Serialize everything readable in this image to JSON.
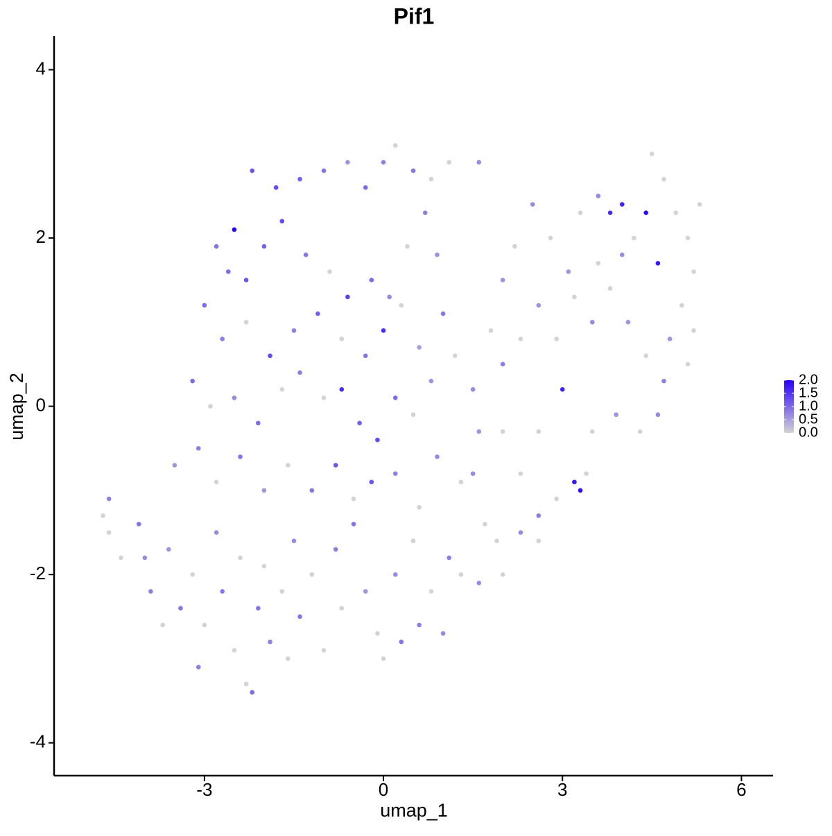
{
  "chart_data": {
    "type": "scatter",
    "title": "Pif1",
    "xlabel": "umap_1",
    "ylabel": "umap_2",
    "xlim": [
      -5.52,
      6.53
    ],
    "ylim": [
      -4.39,
      4.4
    ],
    "xticks": [
      -3,
      0,
      3,
      6
    ],
    "yticks": [
      -4,
      -2,
      0,
      2,
      4
    ],
    "color_low": "#d3d3d3",
    "color_high": "#2a00ff",
    "clim": [
      0,
      2
    ],
    "cticks": [
      {
        "value": 0,
        "label": "0.0"
      },
      {
        "value": 0.5,
        "label": "0.5"
      },
      {
        "value": 1,
        "label": "1.0"
      },
      {
        "value": 1.5,
        "label": "1.5"
      },
      {
        "value": 2,
        "label": "2.0"
      }
    ],
    "x": [
      -2.5,
      -2.2,
      -1.8,
      -1.4,
      -1.0,
      -0.6,
      -0.3,
      0.0,
      0.2,
      0.5,
      0.8,
      1.1,
      1.6,
      -2.8,
      -2.6,
      -2.3,
      -2.0,
      -1.7,
      -1.3,
      -0.9,
      -0.6,
      -0.2,
      0.1,
      0.4,
      0.7,
      0.9,
      -3.0,
      -2.7,
      -2.3,
      -1.9,
      -1.5,
      -1.1,
      -0.7,
      -0.3,
      0.0,
      0.3,
      0.6,
      1.0,
      -3.2,
      -2.9,
      -2.5,
      -2.1,
      -1.7,
      -1.4,
      -1.0,
      -0.7,
      -0.4,
      -0.1,
      0.2,
      0.5,
      0.8,
      1.2,
      1.5,
      -3.5,
      -3.1,
      -2.8,
      -2.4,
      -2.0,
      -1.6,
      -1.2,
      -0.8,
      -0.5,
      -0.2,
      0.2,
      0.6,
      0.9,
      1.3,
      1.6,
      -4.7,
      -4.6,
      -4.6,
      -4.4,
      -4.1,
      -4.0,
      -3.9,
      -3.7,
      -3.6,
      -3.4,
      -3.2,
      -3.1,
      -3.0,
      -2.8,
      -2.7,
      -2.5,
      -2.4,
      -2.3,
      -2.2,
      -2.1,
      -2.0,
      -1.9,
      -1.7,
      -1.6,
      -1.5,
      -1.4,
      -1.2,
      -1.0,
      -0.8,
      -0.7,
      -0.5,
      -0.3,
      -0.1,
      0.0,
      0.2,
      0.3,
      0.5,
      0.6,
      0.8,
      1.0,
      1.1,
      1.3,
      1.6,
      1.9,
      2.0,
      2.3,
      2.6,
      2.0,
      2.2,
      2.5,
      2.8,
      3.1,
      3.3,
      3.6,
      3.8,
      4.0,
      4.2,
      4.4,
      4.5,
      4.7,
      4.9,
      5.1,
      5.3,
      5.2,
      5.0,
      4.8,
      5.1,
      4.7,
      4.4,
      4.1,
      3.8,
      3.5,
      3.2,
      2.9,
      2.6,
      2.3,
      2.0,
      1.8,
      3.0,
      3.5,
      3.9,
      4.3,
      4.6,
      3.4,
      3.2,
      3.3,
      2.9,
      2.6,
      2.3,
      2.0,
      1.7,
      1.5,
      2.6,
      4.0,
      4.6,
      3.6,
      5.2
    ],
    "y": [
      2.1,
      2.8,
      2.6,
      2.7,
      2.8,
      2.9,
      2.6,
      2.9,
      3.1,
      2.8,
      2.7,
      2.9,
      2.9,
      1.9,
      1.6,
      1.5,
      1.9,
      2.2,
      1.8,
      1.6,
      1.3,
      1.5,
      1.3,
      1.9,
      2.3,
      1.8,
      1.2,
      0.8,
      1.0,
      0.6,
      0.9,
      1.1,
      0.8,
      0.6,
      0.9,
      1.2,
      0.7,
      1.1,
      0.3,
      0.0,
      0.1,
      -0.2,
      0.2,
      0.4,
      0.1,
      0.2,
      -0.2,
      -0.4,
      0.1,
      -0.1,
      0.3,
      0.6,
      0.2,
      -0.7,
      -0.5,
      -0.9,
      -0.6,
      -1.0,
      -0.7,
      -1.0,
      -0.7,
      -1.1,
      -0.9,
      -0.8,
      -1.2,
      -0.6,
      -0.9,
      -0.3,
      -1.3,
      -1.1,
      -1.5,
      -1.8,
      -1.4,
      -1.8,
      -2.2,
      -2.6,
      -1.7,
      -2.4,
      -2.0,
      -3.1,
      -2.6,
      -1.5,
      -2.2,
      -2.9,
      -1.8,
      -3.3,
      -3.4,
      -2.4,
      -1.9,
      -2.8,
      -2.2,
      -3.0,
      -1.6,
      -2.5,
      -2.0,
      -2.9,
      -1.7,
      -2.4,
      -1.4,
      -2.2,
      -2.7,
      -3.0,
      -2.0,
      -2.8,
      -1.6,
      -2.6,
      -2.2,
      -2.7,
      -1.8,
      -2.0,
      -2.1,
      -1.6,
      -2.0,
      -1.5,
      -1.6,
      1.5,
      1.9,
      2.4,
      2.0,
      1.6,
      2.3,
      2.5,
      2.3,
      2.4,
      2.0,
      2.3,
      3.0,
      2.7,
      2.3,
      2.0,
      2.4,
      1.6,
      1.2,
      0.8,
      0.5,
      0.3,
      0.6,
      1.0,
      1.4,
      1.0,
      1.3,
      0.8,
      1.2,
      0.8,
      0.5,
      0.9,
      0.2,
      -0.3,
      -0.1,
      -0.3,
      -0.1,
      -0.8,
      -0.9,
      -1.0,
      -1.1,
      -1.3,
      -0.8,
      -0.3,
      -1.4,
      -0.8,
      -0.3,
      1.8,
      1.7,
      1.7,
      0.9
    ],
    "expression": [
      2.0,
      1.2,
      1.3,
      1.1,
      0.9,
      0.6,
      1.0,
      0.8,
      0,
      0.9,
      0,
      0,
      0.7,
      0.9,
      1.0,
      1.2,
      1.1,
      1.3,
      0.9,
      0,
      1.4,
      1.0,
      0.7,
      0,
      0.8,
      0.6,
      1.0,
      0.8,
      0,
      1.3,
      0.8,
      1.1,
      0,
      0.9,
      1.6,
      0,
      0.5,
      0.9,
      1.0,
      0,
      0.7,
      1.0,
      0,
      0.8,
      0,
      1.6,
      1.1,
      1.3,
      1.0,
      0,
      0.6,
      0,
      0.7,
      0.6,
      0.8,
      0,
      0.9,
      0.6,
      0,
      0.9,
      1.2,
      0,
      1.2,
      0.8,
      0,
      0.7,
      0,
      0.6,
      0,
      0.8,
      0,
      0,
      0.9,
      0.7,
      0.8,
      0,
      0.6,
      0.9,
      0,
      0.8,
      0,
      0.7,
      0.9,
      0,
      0,
      0,
      1.0,
      0.9,
      0,
      0.8,
      0,
      0,
      0.7,
      0.9,
      0,
      0,
      0.8,
      0,
      0.9,
      0.6,
      0,
      0,
      0.7,
      0.9,
      0,
      0.8,
      0,
      0.7,
      0.8,
      0,
      0.7,
      0,
      0,
      0.7,
      0,
      0.6,
      0,
      0.7,
      0,
      0.6,
      0,
      0.7,
      1.6,
      1.7,
      0,
      1.9,
      0,
      0,
      0,
      0,
      0,
      0,
      0,
      0.6,
      0,
      0.8,
      0,
      0.6,
      0,
      0.7,
      0,
      0,
      0.6,
      0,
      0.8,
      0,
      1.7,
      0,
      0.6,
      0,
      0.7,
      0,
      1.8,
      1.9,
      0,
      0.8,
      0,
      0,
      0,
      0.7,
      0,
      0.7,
      1.8,
      0,
      0
    ]
  }
}
